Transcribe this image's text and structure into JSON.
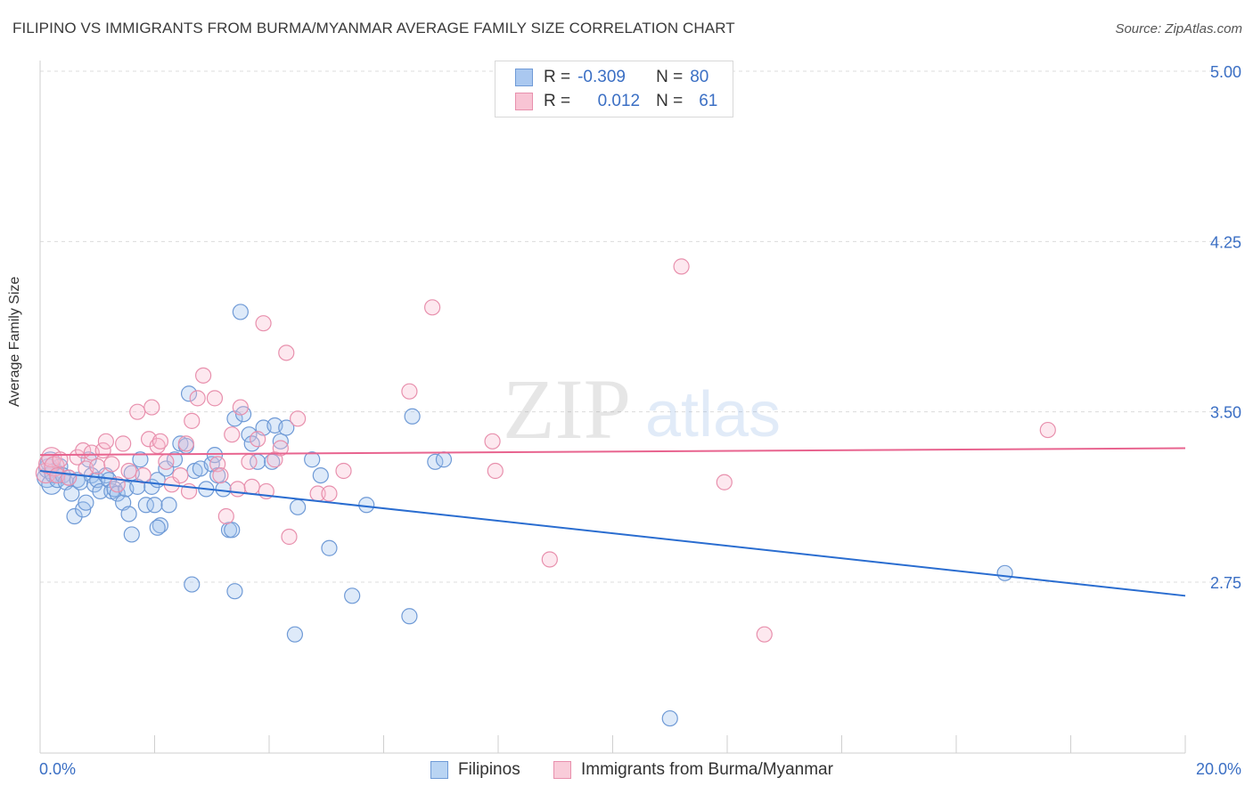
{
  "title": "FILIPINO VS IMMIGRANTS FROM BURMA/MYANMAR AVERAGE FAMILY SIZE CORRELATION CHART",
  "source": "Source: ZipAtlas.com",
  "watermark": {
    "zip": "ZIP",
    "atlas": "atlas"
  },
  "legend_top": {
    "rows": [
      {
        "r_label": "R =",
        "r_value": "-0.309",
        "n_label": "N =",
        "n_value": "80",
        "swatch": "#aac8f0",
        "border": "#6f9ad6"
      },
      {
        "r_label": "R =",
        "r_value": "0.012",
        "n_label": "N =",
        "n_value": "61",
        "swatch": "#f8c4d4",
        "border": "#e890ad"
      }
    ]
  },
  "legend_bottom": [
    {
      "label": "Filipinos",
      "swatch": "#b9d4f3",
      "border": "#6f9ad6"
    },
    {
      "label": "Immigrants from Burma/Myanmar",
      "swatch": "#f9ccd9",
      "border": "#e890ad"
    }
  ],
  "colors": {
    "blue_line": "#2a6dd0",
    "pink_line": "#e8648f",
    "blue_fill": "rgba(160,196,238,0.35)",
    "blue_stroke": "#6f9ad6",
    "pink_fill": "rgba(248,190,208,0.35)",
    "pink_stroke": "#e890ad",
    "tick_label": "#3b6fc4"
  },
  "chart_data": {
    "type": "scatter",
    "title": "FILIPINO VS IMMIGRANTS FROM BURMA/MYANMAR AVERAGE FAMILY SIZE CORRELATION CHART",
    "xlabel": "",
    "ylabel": "Average Family Size",
    "xlim": [
      0,
      20
    ],
    "ylim": [
      2.0,
      5.08
    ],
    "x_tick_labels": [
      "0.0%",
      "20.0%"
    ],
    "y_ticks": [
      2.75,
      3.5,
      4.25,
      5.0
    ],
    "y_tick_labels": [
      "2.75",
      "3.50",
      "4.25",
      "5.00"
    ],
    "grid": "horizontal dashed",
    "legend_position": "top-center",
    "series": [
      {
        "name": "Filipinos",
        "trend": {
          "x": [
            0,
            20
          ],
          "y": [
            3.24,
            2.69
          ]
        },
        "points": [
          [
            0.12,
            3.21
          ],
          [
            0.15,
            3.25
          ],
          [
            0.18,
            3.28
          ],
          [
            0.2,
            3.18
          ],
          [
            0.25,
            3.23
          ],
          [
            0.3,
            3.2
          ],
          [
            0.35,
            3.26
          ],
          [
            0.4,
            3.22
          ],
          [
            0.45,
            3.19
          ],
          [
            0.5,
            3.21
          ],
          [
            0.55,
            3.14
          ],
          [
            0.6,
            3.04
          ],
          [
            0.65,
            3.2
          ],
          [
            0.7,
            3.19
          ],
          [
            0.75,
            3.07
          ],
          [
            0.8,
            3.1
          ],
          [
            0.85,
            3.29
          ],
          [
            0.9,
            3.22
          ],
          [
            0.95,
            3.18
          ],
          [
            1.0,
            3.2
          ],
          [
            1.05,
            3.15
          ],
          [
            1.15,
            3.22
          ],
          [
            1.2,
            3.2
          ],
          [
            1.25,
            3.15
          ],
          [
            1.3,
            3.16
          ],
          [
            1.35,
            3.14
          ],
          [
            1.45,
            3.1
          ],
          [
            1.5,
            3.16
          ],
          [
            1.55,
            3.05
          ],
          [
            1.6,
            3.23
          ],
          [
            1.7,
            3.17
          ],
          [
            1.75,
            3.29
          ],
          [
            1.85,
            3.09
          ],
          [
            1.95,
            3.17
          ],
          [
            2.0,
            3.09
          ],
          [
            2.05,
            3.2
          ],
          [
            2.1,
            3.0
          ],
          [
            2.2,
            3.25
          ],
          [
            2.25,
            3.09
          ],
          [
            2.35,
            3.29
          ],
          [
            2.45,
            3.36
          ],
          [
            2.55,
            3.35
          ],
          [
            2.6,
            3.58
          ],
          [
            2.7,
            3.24
          ],
          [
            2.8,
            3.25
          ],
          [
            2.9,
            3.16
          ],
          [
            3.0,
            3.27
          ],
          [
            3.05,
            3.31
          ],
          [
            3.1,
            3.22
          ],
          [
            3.2,
            3.16
          ],
          [
            3.3,
            2.98
          ],
          [
            3.4,
            3.47
          ],
          [
            3.5,
            3.94
          ],
          [
            3.55,
            3.49
          ],
          [
            3.65,
            3.4
          ],
          [
            3.7,
            3.36
          ],
          [
            3.8,
            3.28
          ],
          [
            3.9,
            3.43
          ],
          [
            4.05,
            3.28
          ],
          [
            4.1,
            3.44
          ],
          [
            4.2,
            3.37
          ],
          [
            4.3,
            3.43
          ],
          [
            4.45,
            2.52
          ],
          [
            4.5,
            3.08
          ],
          [
            4.75,
            3.29
          ],
          [
            4.9,
            3.22
          ],
          [
            5.05,
            2.9
          ],
          [
            5.45,
            2.69
          ],
          [
            5.7,
            3.09
          ],
          [
            6.45,
            2.6
          ],
          [
            6.5,
            3.48
          ],
          [
            6.9,
            3.28
          ],
          [
            7.05,
            3.29
          ],
          [
            11.0,
            2.15
          ],
          [
            16.85,
            2.79
          ],
          [
            2.65,
            2.74
          ],
          [
            3.4,
            2.71
          ],
          [
            3.35,
            2.98
          ],
          [
            1.6,
            2.96
          ],
          [
            2.05,
            2.99
          ]
        ]
      },
      {
        "name": "Immigrants from Burma/Myanmar",
        "trend": {
          "x": [
            0,
            20
          ],
          "y": [
            3.31,
            3.34
          ]
        },
        "points": [
          [
            0.1,
            3.23
          ],
          [
            0.15,
            3.27
          ],
          [
            0.2,
            3.3
          ],
          [
            0.25,
            3.26
          ],
          [
            0.3,
            3.22
          ],
          [
            0.35,
            3.29
          ],
          [
            0.5,
            3.21
          ],
          [
            0.65,
            3.3
          ],
          [
            0.75,
            3.33
          ],
          [
            0.8,
            3.25
          ],
          [
            0.9,
            3.32
          ],
          [
            1.0,
            3.26
          ],
          [
            1.1,
            3.33
          ],
          [
            1.15,
            3.37
          ],
          [
            1.25,
            3.27
          ],
          [
            1.35,
            3.18
          ],
          [
            1.45,
            3.36
          ],
          [
            1.55,
            3.24
          ],
          [
            1.7,
            3.5
          ],
          [
            1.8,
            3.22
          ],
          [
            1.9,
            3.38
          ],
          [
            1.95,
            3.52
          ],
          [
            2.05,
            3.35
          ],
          [
            2.1,
            3.37
          ],
          [
            2.2,
            3.28
          ],
          [
            2.3,
            3.18
          ],
          [
            2.45,
            3.22
          ],
          [
            2.55,
            3.36
          ],
          [
            2.6,
            3.15
          ],
          [
            2.65,
            3.46
          ],
          [
            2.75,
            3.56
          ],
          [
            2.85,
            3.66
          ],
          [
            3.05,
            3.56
          ],
          [
            3.1,
            3.27
          ],
          [
            3.15,
            3.22
          ],
          [
            3.25,
            3.04
          ],
          [
            3.35,
            3.4
          ],
          [
            3.45,
            3.16
          ],
          [
            3.5,
            3.52
          ],
          [
            3.65,
            3.28
          ],
          [
            3.7,
            3.17
          ],
          [
            3.8,
            3.38
          ],
          [
            3.9,
            3.89
          ],
          [
            3.95,
            3.15
          ],
          [
            4.1,
            3.29
          ],
          [
            4.2,
            3.34
          ],
          [
            4.3,
            3.76
          ],
          [
            4.35,
            2.95
          ],
          [
            4.5,
            3.47
          ],
          [
            4.85,
            3.14
          ],
          [
            5.05,
            3.14
          ],
          [
            5.3,
            3.24
          ],
          [
            6.45,
            3.59
          ],
          [
            6.85,
            3.96
          ],
          [
            7.9,
            3.37
          ],
          [
            7.95,
            3.24
          ],
          [
            8.9,
            2.85
          ],
          [
            11.2,
            4.14
          ],
          [
            11.95,
            3.19
          ],
          [
            12.65,
            2.52
          ],
          [
            17.6,
            3.42
          ]
        ]
      }
    ]
  }
}
